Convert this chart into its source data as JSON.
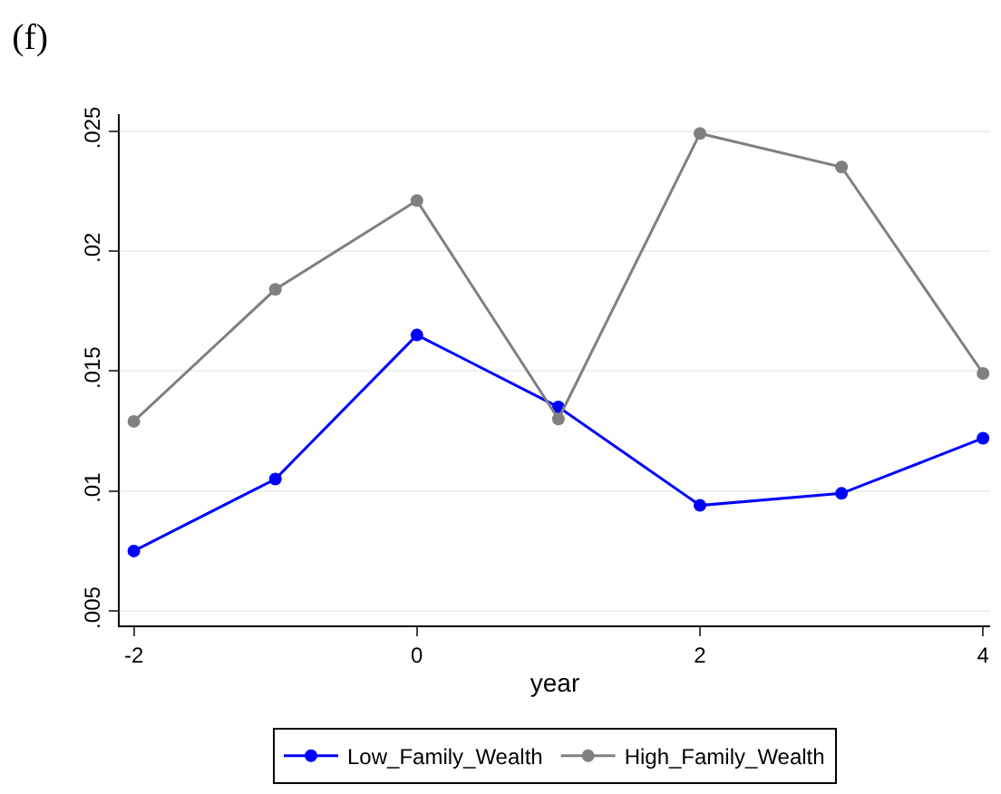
{
  "chart_data": {
    "type": "line",
    "title": "(f)",
    "xlabel": "year",
    "x": [
      -2,
      -1,
      0,
      1,
      2,
      3,
      4
    ],
    "series": [
      {
        "name": "Low_Family_Wealth",
        "color": "#0000ff",
        "values": [
          0.0075,
          0.0105,
          0.0165,
          0.0135,
          0.0094,
          0.0099,
          0.0122
        ]
      },
      {
        "name": "High_Family_Wealth",
        "color": "#808080",
        "values": [
          0.0129,
          0.0184,
          0.0221,
          0.013,
          0.0249,
          0.0235,
          0.0149
        ]
      }
    ],
    "xlim": [
      -2.1,
      4.05
    ],
    "xticks": [
      -2,
      0,
      2,
      4
    ],
    "ylim": [
      0.0044,
      0.0257
    ],
    "yticks": [
      {
        "value": 0.005,
        "label": ".005"
      },
      {
        "value": 0.01,
        "label": ".01"
      },
      {
        "value": 0.015,
        "label": ".015"
      },
      {
        "value": 0.02,
        "label": ".02"
      },
      {
        "value": 0.025,
        "label": ".025"
      }
    ],
    "grid": "y",
    "legend": "bottom",
    "marker": "circle",
    "line_style": "solid"
  }
}
